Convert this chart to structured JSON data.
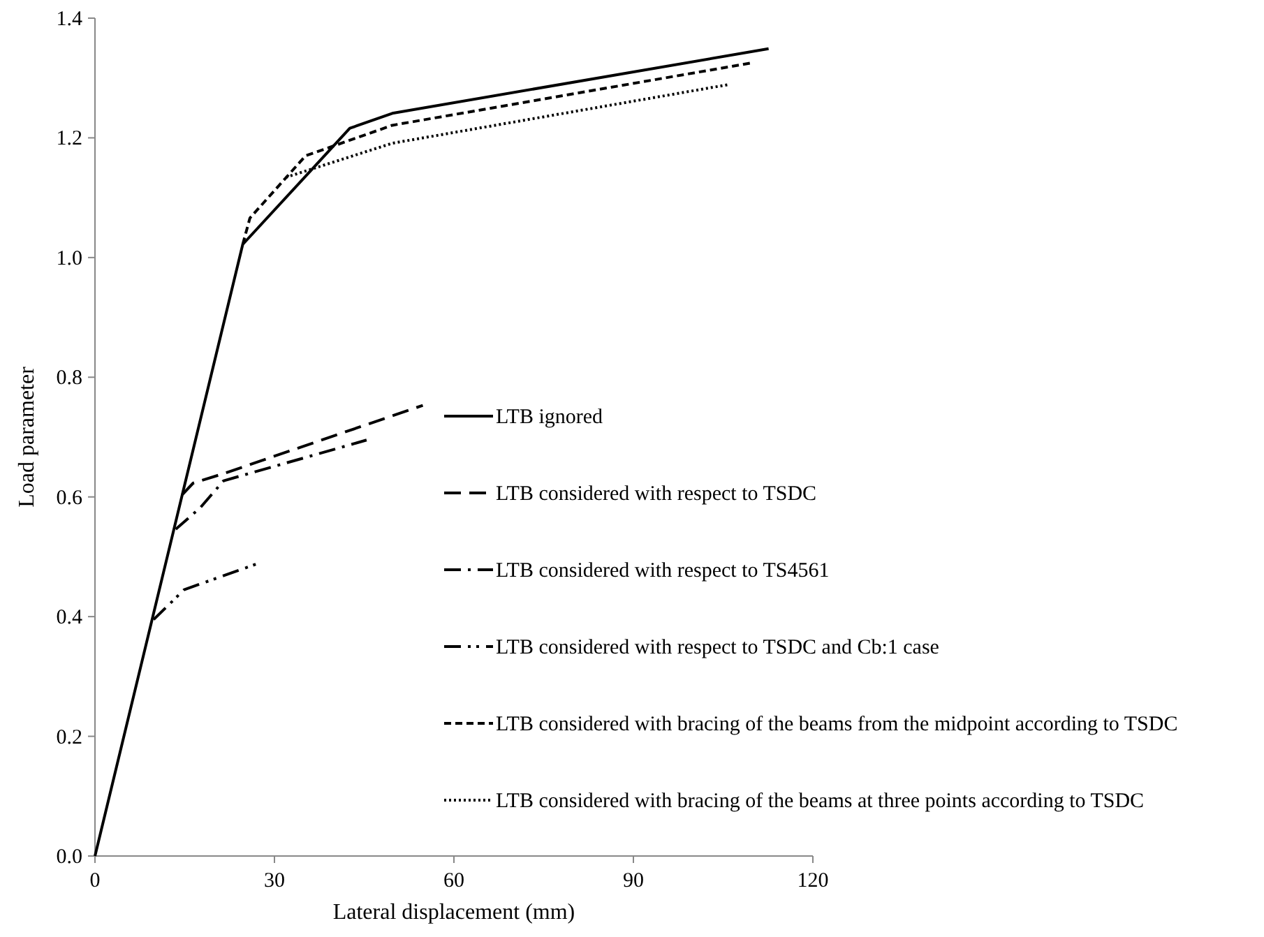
{
  "chart_data": {
    "type": "line",
    "xlabel": "Lateral displacement (mm)",
    "ylabel": "Load  parameter",
    "xlim": [
      0,
      120
    ],
    "xticks": [
      0,
      30,
      60,
      90,
      120
    ],
    "ylim": [
      0,
      1.4
    ],
    "yticks": [
      {
        "value": 0,
        "label": "0.0"
      },
      {
        "value": 0.2,
        "label": "0.2"
      },
      {
        "value": 0.4,
        "label": "0.4"
      },
      {
        "value": 0.6,
        "label": "0.6"
      },
      {
        "value": 0.8,
        "label": "0.8"
      },
      {
        "value": 1,
        "label": "1.0"
      },
      {
        "value": 1.2,
        "label": "1.2"
      },
      {
        "value": 1.4,
        "label": "1.4"
      }
    ],
    "grid": false,
    "legend": "right",
    "marker": "none",
    "series": [
      {
        "name": "LTB ignored",
        "color": "#000000",
        "line_style": "solid",
        "x": [
          0,
          24.7,
          42.6,
          49.7,
          112.6
        ],
        "values": [
          0,
          1.022,
          1.216,
          1.241,
          1.349
        ]
      },
      {
        "name": "LTB considered with respect to TSDC",
        "color": "#000000",
        "line_style": "longdash",
        "x": [
          14.6,
          16.4,
          21.5,
          54.8
        ],
        "values": [
          0.604,
          0.623,
          0.639,
          0.753
        ]
      },
      {
        "name": "LTB considered with respect to TS4561",
        "color": "#000000",
        "line_style": "dashdot",
        "x": [
          13.5,
          17.6,
          21.5,
          45.4
        ],
        "values": [
          0.546,
          0.582,
          0.627,
          0.695
        ]
      },
      {
        "name": "LTB considered with respect to TSDC and Cb:1 case",
        "color": "#000000",
        "line_style": "dashdotdot",
        "x": [
          9.8,
          14.9,
          27.3
        ],
        "values": [
          0.395,
          0.445,
          0.489
        ]
      },
      {
        "name": "LTB considered with bracing of the beams from the midpoint according to TSDC",
        "color": "#000000",
        "line_style": "dashed",
        "x": [
          24.7,
          25.9,
          35.2,
          49.7,
          109.6
        ],
        "values": [
          1.022,
          1.066,
          1.17,
          1.221,
          1.325
        ]
      },
      {
        "name": "LTB considered with bracing of the beams at three points according to TSDC",
        "color": "#000000",
        "line_style": "dotted",
        "x": [
          31.9,
          49.7,
          105.9
        ],
        "values": [
          1.134,
          1.191,
          1.289
        ]
      }
    ]
  }
}
